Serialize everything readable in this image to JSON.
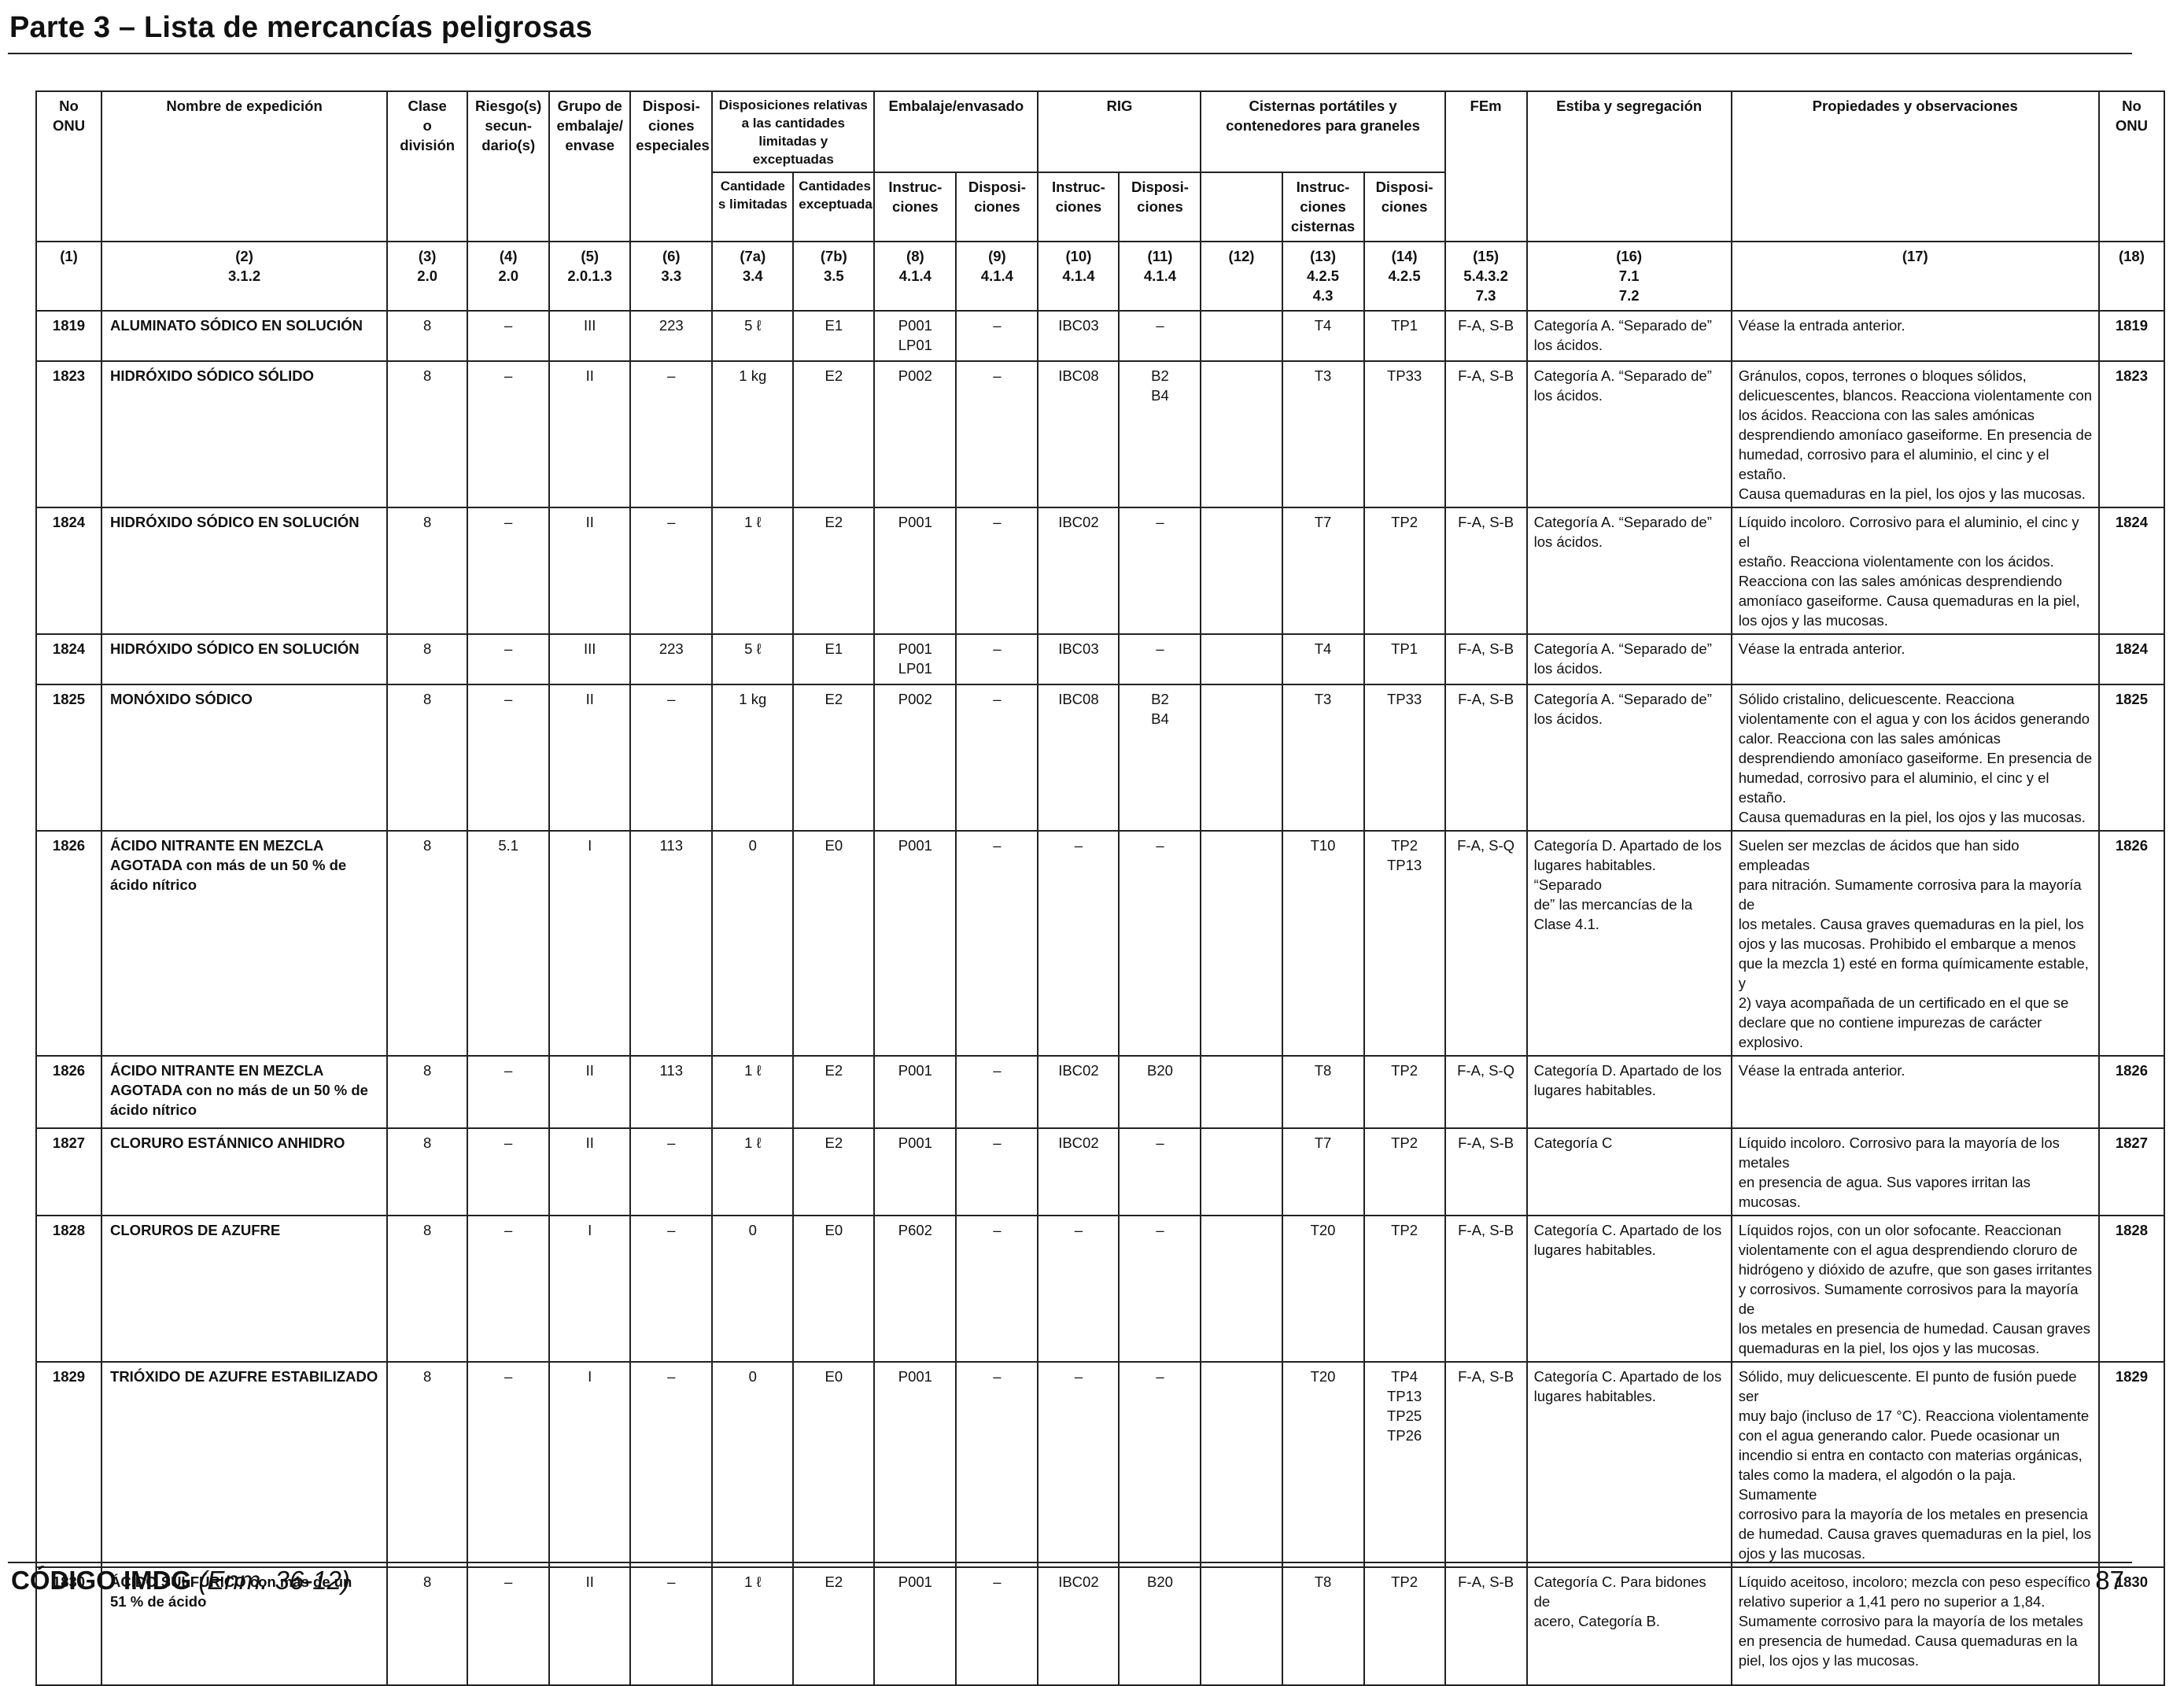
{
  "page": {
    "title": "Parte 3 – Lista de mercancías peligrosas",
    "footer_code": "CÓDIGO IMDG",
    "footer_amendment": "(Enm. 36-12)",
    "page_number": "87"
  },
  "table": {
    "headers": {
      "un_left": "No\nONU",
      "name": "Nombre de expedición",
      "class": "Clase\no\ndivisión",
      "subrisk": "Riesgo(s)\nsecun-\ndario(s)",
      "packing_group": "Grupo de\nembalaje/\nenvase",
      "special": "Disposi-\nciones\nespeciales",
      "limited_group": "Disposiciones relativas\na las cantidades\nlimitadas y exceptuadas",
      "limited_7a": "Cantidade\ns limitadas",
      "limited_7b": "Cantidades\nexceptuadas",
      "packaging_group": "Embalaje/envasado",
      "pack_instr": "Instruc-\nciones",
      "pack_prov": "Disposi-\nciones",
      "ibc_group": "RIG",
      "ibc_instr": "Instruc-\nciones",
      "ibc_prov": "Disposi-\nciones",
      "tank_group": "Cisternas portátiles y\ncontenedores para graneles",
      "tank_instr": "Instruc-\nciones\ncisternas",
      "tank_prov": "Disposi-\nciones",
      "ems": "FEm",
      "stowage": "Estiba y segregación",
      "properties": "Propiedades y observaciones",
      "un_right": "No\nONU"
    },
    "col_numbers": [
      "(1)",
      "(2)\n3.1.2",
      "(3)\n2.0",
      "(4)\n2.0",
      "(5)\n2.0.1.3",
      "(6)\n3.3",
      "(7a)\n3.4",
      "(7b)\n3.5",
      "(8)\n4.1.4",
      "(9)\n4.1.4",
      "(10)\n4.1.4",
      "(11)\n4.1.4",
      "(12)",
      "(13)\n4.2.5\n4.3",
      "(14)\n4.2.5",
      "(15)\n5.4.3.2\n7.3",
      "(16)\n7.1\n7.2",
      "(17)",
      "(18)"
    ],
    "rows": [
      {
        "un": "1819",
        "name": "ALUMINATO SÓDICO EN SOLUCIÓN",
        "cls": "8",
        "sub": "–",
        "pg": "III",
        "sp": "223",
        "lq": "5 ℓ",
        "eq": "E1",
        "pi": "P001\nLP01",
        "pp": "–",
        "ibc": "IBC03",
        "ibcp": "–",
        "c12": "",
        "tank": "T4",
        "tankp": "TP1",
        "ems": "F-A, S-B",
        "stow": "Categoría A. “Separado de”\nlos ácidos.",
        "props": "Véase la entrada anterior.",
        "un2": "1819"
      },
      {
        "un": "1823",
        "name": "HIDRÓXIDO SÓDICO SÓLIDO",
        "cls": "8",
        "sub": "–",
        "pg": "II",
        "sp": "–",
        "lq": "1 kg",
        "eq": "E2",
        "pi": "P002",
        "pp": "–",
        "ibc": "IBC08",
        "ibcp": "B2\nB4",
        "c12": "",
        "tank": "T3",
        "tankp": "TP33",
        "ems": "F-A, S-B",
        "stow": "Categoría A. “Separado de”\nlos ácidos.",
        "props": "Gránulos, copos, terrones o bloques sólidos,\ndelicuescentes, blancos. Reacciona violentamente con\nlos ácidos. Reacciona con las sales amónicas\ndesprendiendo amoníaco gaseiforme. En presencia de\nhumedad, corrosivo para el aluminio, el cinc y el estaño.\nCausa quemaduras en la piel, los ojos y las mucosas.",
        "un2": "1823"
      },
      {
        "un": "1824",
        "name": "HIDRÓXIDO SÓDICO EN SOLUCIÓN",
        "cls": "8",
        "sub": "–",
        "pg": "II",
        "sp": "–",
        "lq": "1 ℓ",
        "eq": "E2",
        "pi": "P001",
        "pp": "–",
        "ibc": "IBC02",
        "ibcp": "–",
        "c12": "",
        "tank": "T7",
        "tankp": "TP2",
        "ems": "F-A, S-B",
        "stow": "Categoría A. “Separado de”\nlos ácidos.",
        "props": "Líquido incoloro. Corrosivo para el aluminio, el cinc y el\nestaño. Reacciona violentamente con los ácidos.\nReacciona con las sales amónicas desprendiendo\namoníaco gaseiforme. Causa quemaduras en la piel,\nlos ojos y las mucosas.",
        "un2": "1824"
      },
      {
        "un": "1824",
        "name": "HIDRÓXIDO SÓDICO EN SOLUCIÓN",
        "cls": "8",
        "sub": "–",
        "pg": "III",
        "sp": "223",
        "lq": "5 ℓ",
        "eq": "E1",
        "pi": "P001\nLP01",
        "pp": "–",
        "ibc": "IBC03",
        "ibcp": "–",
        "c12": "",
        "tank": "T4",
        "tankp": "TP1",
        "ems": "F-A, S-B",
        "stow": "Categoría A. “Separado de”\nlos ácidos.",
        "props": "Véase la entrada anterior.",
        "un2": "1824"
      },
      {
        "un": "1825",
        "name": "MONÓXIDO SÓDICO",
        "cls": "8",
        "sub": "–",
        "pg": "II",
        "sp": "–",
        "lq": "1 kg",
        "eq": "E2",
        "pi": "P002",
        "pp": "–",
        "ibc": "IBC08",
        "ibcp": "B2\nB4",
        "c12": "",
        "tank": "T3",
        "tankp": "TP33",
        "ems": "F-A, S-B",
        "stow": "Categoría A. “Separado de”\nlos ácidos.",
        "props": "Sólido cristalino, delicuescente. Reacciona\nviolentamente con el agua y con los ácidos generando\ncalor. Reacciona con las sales amónicas\ndesprendiendo amoníaco gaseiforme. En presencia de\nhumedad, corrosivo para el aluminio, el cinc y el estaño.\nCausa quemaduras en la piel, los ojos y las mucosas.",
        "un2": "1825"
      },
      {
        "un": "1826",
        "name": "ÁCIDO NITRANTE EN MEZCLA\nAGOTADA con más de un 50 % de\nácido nítrico",
        "cls": "8",
        "sub": "5.1",
        "pg": "I",
        "sp": "113",
        "lq": "0",
        "eq": "E0",
        "pi": "P001",
        "pp": "–",
        "ibc": "–",
        "ibcp": "–",
        "c12": "",
        "tank": "T10",
        "tankp": "TP2\nTP13",
        "ems": "F-A, S-Q",
        "stow": "Categoría D. Apartado de los\nlugares habitables. “Separado\nde” las mercancías de la\nClase 4.1.",
        "props": "Suelen ser mezclas de ácidos que han sido empleadas\npara nitración. Sumamente corrosiva para la mayoría de\nlos metales. Causa graves quemaduras en la piel, los\nojos y las mucosas. Prohibido el embarque a menos\nque la mezcla 1) esté en forma químicamente estable, y\n2) vaya acompañada de un certificado en el que se\ndeclare que no contiene impurezas de carácter\nexplosivo.",
        "un2": "1826"
      },
      {
        "un": "1826",
        "name": "ÁCIDO NITRANTE EN MEZCLA\nAGOTADA con no más de un 50 % de\nácido nítrico",
        "cls": "8",
        "sub": "–",
        "pg": "II",
        "sp": "113",
        "lq": "1 ℓ",
        "eq": "E2",
        "pi": "P001",
        "pp": "–",
        "ibc": "IBC02",
        "ibcp": "B20",
        "c12": "",
        "tank": "T8",
        "tankp": "TP2",
        "ems": "F-A, S-Q",
        "stow": "Categoría D. Apartado de los\nlugares habitables.",
        "props": "Véase la entrada anterior.",
        "un2": "1826"
      },
      {
        "un": "1827",
        "name": "CLORURO ESTÁNNICO ANHIDRO",
        "cls": "8",
        "sub": "–",
        "pg": "II",
        "sp": "–",
        "lq": "1 ℓ",
        "eq": "E2",
        "pi": "P001",
        "pp": "–",
        "ibc": "IBC02",
        "ibcp": "–",
        "c12": "",
        "tank": "T7",
        "tankp": "TP2",
        "ems": "F-A, S-B",
        "stow": "Categoría C",
        "props": "Líquido incoloro. Corrosivo para la mayoría de los metales\nen presencia de agua. Sus vapores irritan las mucosas.",
        "un2": "1827"
      },
      {
        "un": "1828",
        "name": "CLORUROS DE AZUFRE",
        "cls": "8",
        "sub": "–",
        "pg": "I",
        "sp": "–",
        "lq": "0",
        "eq": "E0",
        "pi": "P602",
        "pp": "–",
        "ibc": "–",
        "ibcp": "–",
        "c12": "",
        "tank": "T20",
        "tankp": "TP2",
        "ems": "F-A, S-B",
        "stow": "Categoría C. Apartado de los\nlugares habitables.",
        "props": "Líquidos rojos, con un olor sofocante. Reaccionan\nviolentamente con el agua desprendiendo cloruro de\nhidrógeno y dióxido de azufre, que son gases irritantes\ny corrosivos. Sumamente corrosivos para la mayoría de\nlos metales en presencia de humedad. Causan graves\nquemaduras en la piel, los ojos y las mucosas.",
        "un2": "1828"
      },
      {
        "un": "1829",
        "name": "TRIÓXIDO DE AZUFRE ESTABILIZADO",
        "cls": "8",
        "sub": "–",
        "pg": "I",
        "sp": "–",
        "lq": "0",
        "eq": "E0",
        "pi": "P001",
        "pp": "–",
        "ibc": "–",
        "ibcp": "–",
        "c12": "",
        "tank": "T20",
        "tankp": "TP4\nTP13\nTP25\nTP26",
        "ems": "F-A, S-B",
        "stow": "Categoría C. Apartado de los\nlugares habitables.",
        "props": "Sólido, muy delicuescente. El punto de fusión puede ser\nmuy bajo (incluso de 17 °C). Reacciona violentamente\ncon el agua generando calor. Puede ocasionar un\nincendio si entra en contacto con materias orgánicas,\ntales como la madera, el algodón o la paja. Sumamente\ncorrosivo para la mayoría de los metales en presencia\nde humedad. Causa graves quemaduras en la piel, los\nojos y las mucosas.",
        "un2": "1829"
      },
      {
        "un": "1830",
        "name": "ÁCIDO SULFÚRICO con más de un\n51 % de ácido",
        "cls": "8",
        "sub": "–",
        "pg": "II",
        "sp": "–",
        "lq": "1 ℓ",
        "eq": "E2",
        "pi": "P001",
        "pp": "–",
        "ibc": "IBC02",
        "ibcp": "B20",
        "c12": "",
        "tank": "T8",
        "tankp": "TP2",
        "ems": "F-A, S-B",
        "stow": "Categoría C. Para bidones de\nacero, Categoría B.",
        "props": "Líquido aceitoso, incoloro; mezcla con peso específico\nrelativo superior a 1,41 pero no superior a 1,84.\nSumamente corrosivo para la mayoría de los metales\nen presencia de humedad. Causa quemaduras en la\npiel, los ojos y las mucosas.",
        "un2": "1830"
      }
    ]
  }
}
